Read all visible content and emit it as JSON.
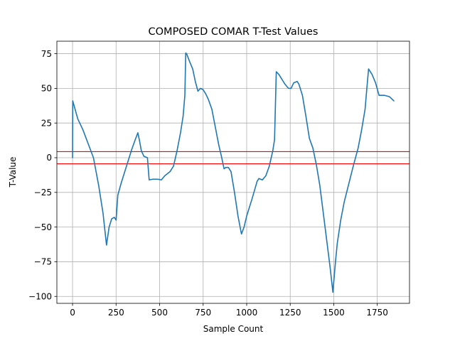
{
  "chart_data": {
    "type": "line",
    "title": "COMPOSED COMAR T-Test Values",
    "xlabel": "Sample Count",
    "ylabel": "T-Value",
    "xlim": [
      -90,
      1935
    ],
    "ylim": [
      -105,
      84
    ],
    "grid": true,
    "x_ticks": [
      0,
      250,
      500,
      750,
      1000,
      1250,
      1500,
      1750
    ],
    "y_ticks": [
      -100,
      -75,
      -50,
      -25,
      0,
      25,
      50,
      75
    ],
    "x_tick_labels": [
      "0",
      "250",
      "500",
      "750",
      "1000",
      "1250",
      "1500",
      "1750"
    ],
    "y_tick_labels": [
      "−100",
      "−75",
      "−50",
      "−25",
      "0",
      "25",
      "50",
      "75"
    ],
    "threshold_lines": [
      {
        "y": 4.4,
        "color": "#ff0000"
      },
      {
        "y": -4.4,
        "color": "#ff0000"
      }
    ],
    "series": [
      {
        "color": "#1f77b4",
        "x": [
          0,
          1,
          10,
          30,
          60,
          90,
          120,
          150,
          175,
          195,
          210,
          225,
          240,
          250,
          260,
          280,
          300,
          320,
          340,
          360,
          375,
          385,
          395,
          410,
          430,
          440,
          460,
          490,
          510,
          530,
          560,
          580,
          600,
          620,
          635,
          645,
          650,
          655,
          670,
          690,
          705,
          720,
          735,
          750,
          765,
          780,
          800,
          820,
          840,
          855,
          870,
          880,
          895,
          910,
          930,
          950,
          970,
          985,
          1000,
          1030,
          1060,
          1070,
          1090,
          1110,
          1130,
          1150,
          1160,
          1170,
          1185,
          1200,
          1220,
          1240,
          1255,
          1270,
          1290,
          1300,
          1320,
          1340,
          1360,
          1380,
          1400,
          1420,
          1440,
          1460,
          1480,
          1495,
          1510,
          1520,
          1540,
          1560,
          1580,
          1610,
          1640,
          1660,
          1680,
          1690,
          1700,
          1720,
          1740,
          1760,
          1790,
          1820,
          1845
        ],
        "y": [
          0,
          41,
          37,
          28,
          20,
          10,
          0,
          -20,
          -40,
          -63,
          -50,
          -44,
          -43,
          -45,
          -27,
          -18,
          -10,
          -2,
          6,
          13,
          18,
          12,
          5,
          1,
          0,
          -16,
          -15.5,
          -15.5,
          -16,
          -13,
          -10,
          -6,
          5,
          18,
          30,
          45,
          75.5,
          75,
          70,
          64,
          55,
          48,
          50,
          49,
          46,
          42,
          35,
          22,
          9,
          1,
          -8,
          -7,
          -7,
          -10,
          -25,
          -42,
          -55,
          -50,
          -42,
          -30,
          -17,
          -15,
          -16,
          -13,
          -6,
          5,
          13,
          62,
          60,
          57,
          53,
          50,
          50,
          54,
          55,
          53,
          45,
          30,
          14,
          7,
          -5,
          -20,
          -40,
          -60,
          -80,
          -97,
          -75,
          -62,
          -45,
          -32,
          -22,
          -7,
          7,
          20,
          35,
          50,
          64,
          60,
          54,
          45,
          45,
          44,
          41
        ]
      }
    ]
  }
}
